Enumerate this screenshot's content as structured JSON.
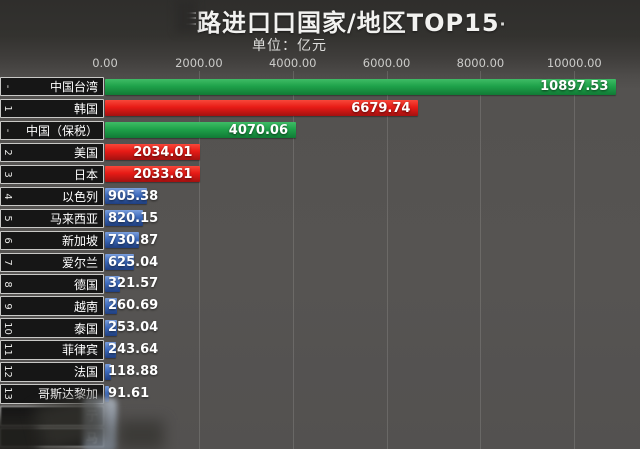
{
  "header": {
    "title": "路进口口国家/地区TOP15",
    "title_suffix": "·",
    "subtitle_label": "单位：亿元"
  },
  "axis": {
    "tick_labels": [
      "0.00",
      "2000.00",
      "4000.00",
      "6000.00",
      "8000.00",
      "10000.00"
    ],
    "tick_values": [
      0,
      2000,
      4000,
      6000,
      8000,
      10000
    ],
    "gridline_values": [
      2000,
      4000,
      6000,
      8000,
      10000
    ],
    "scale_max": 11400
  },
  "colors": {
    "green": "#1fa24a",
    "green_light": "#3fbc66",
    "green_dark": "#117a35",
    "red": "#e71b16",
    "red_light": "#f8473a",
    "red_dark": "#a31110",
    "blue": "#3e6cbe",
    "blue_light": "#7b9fdd",
    "blue_dark": "#1f3f80",
    "label_box_bg": "#161616",
    "label_border": "#c8c8c6",
    "plot_bg": "#565452",
    "header_bg": "#33322f",
    "tick_color": "#cbcbc9"
  },
  "rows": [
    {
      "rank": "-",
      "label": "中国台湾",
      "value": "10897.53",
      "num": 10897.53,
      "color": "green"
    },
    {
      "rank": "1",
      "label": "韩国",
      "value": "6679.74",
      "num": 6679.74,
      "color": "red"
    },
    {
      "rank": "-",
      "label": "中国（保税）",
      "value": "4070.06",
      "num": 4070.06,
      "color": "green"
    },
    {
      "rank": "2",
      "label": "美国",
      "value": "2034.01",
      "num": 2034.01,
      "color": "red"
    },
    {
      "rank": "3",
      "label": "日本",
      "value": "2033.61",
      "num": 2033.61,
      "color": "red"
    },
    {
      "rank": "4",
      "label": "以色列",
      "value": "905.38",
      "num": 905.38,
      "color": "blue"
    },
    {
      "rank": "5",
      "label": "马来西亚",
      "value": "820.15",
      "num": 820.15,
      "color": "blue"
    },
    {
      "rank": "6",
      "label": "新加坡",
      "value": "730.87",
      "num": 730.87,
      "color": "blue"
    },
    {
      "rank": "7",
      "label": "爱尔兰",
      "value": "625.04",
      "num": 625.04,
      "color": "blue"
    },
    {
      "rank": "8",
      "label": "德国",
      "value": "321.57",
      "num": 321.57,
      "color": "blue"
    },
    {
      "rank": "9",
      "label": "越南",
      "value": "260.69",
      "num": 260.69,
      "color": "blue"
    },
    {
      "rank": "10",
      "label": "泰国",
      "value": "253.04",
      "num": 253.04,
      "color": "blue"
    },
    {
      "rank": "11",
      "label": "菲律宾",
      "value": "243.64",
      "num": 243.64,
      "color": "blue"
    },
    {
      "rank": "12",
      "label": "法国",
      "value": "118.88",
      "num": 118.88,
      "color": "blue"
    },
    {
      "rank": "13",
      "label": "哥斯达黎加",
      "value": "91.61",
      "num": 91.61,
      "color": "blue"
    }
  ],
  "blurred_rows": [
    {
      "rank": "",
      "fragment": "亍"
    },
    {
      "rank": "",
      "fragment": "马"
    }
  ],
  "chart_data": {
    "type": "bar",
    "orientation": "horizontal",
    "title": "路进口口国家/地区TOP15",
    "subtitle": "单位：亿元",
    "unit": "亿元",
    "categories": [
      "中国台湾",
      "韩国",
      "中国（保税）",
      "美国",
      "日本",
      "以色列",
      "马来西亚",
      "新加坡",
      "爱尔兰",
      "德国",
      "越南",
      "泰国",
      "菲律宾",
      "法国",
      "哥斯达黎加"
    ],
    "ranks": [
      "-",
      "1",
      "-",
      "2",
      "3",
      "4",
      "5",
      "6",
      "7",
      "8",
      "9",
      "10",
      "11",
      "12",
      "13"
    ],
    "values": [
      10897.53,
      6679.74,
      4070.06,
      2034.01,
      2033.61,
      905.38,
      820.15,
      730.87,
      625.04,
      321.57,
      260.69,
      253.04,
      243.64,
      118.88,
      91.61
    ],
    "bar_colors": [
      "green",
      "red",
      "green",
      "red",
      "red",
      "blue",
      "blue",
      "blue",
      "blue",
      "blue",
      "blue",
      "blue",
      "blue",
      "blue",
      "blue"
    ],
    "xlabel": "",
    "ylabel": "",
    "xlim": [
      0,
      11400
    ],
    "xticks": [
      0,
      2000,
      4000,
      6000,
      8000,
      10000
    ],
    "grid": true,
    "legend": false,
    "value_labels_shown": true,
    "note": "two additional trailing rows at the bottom are smudged/blurred; only fragments 亍 and 马 visible"
  }
}
